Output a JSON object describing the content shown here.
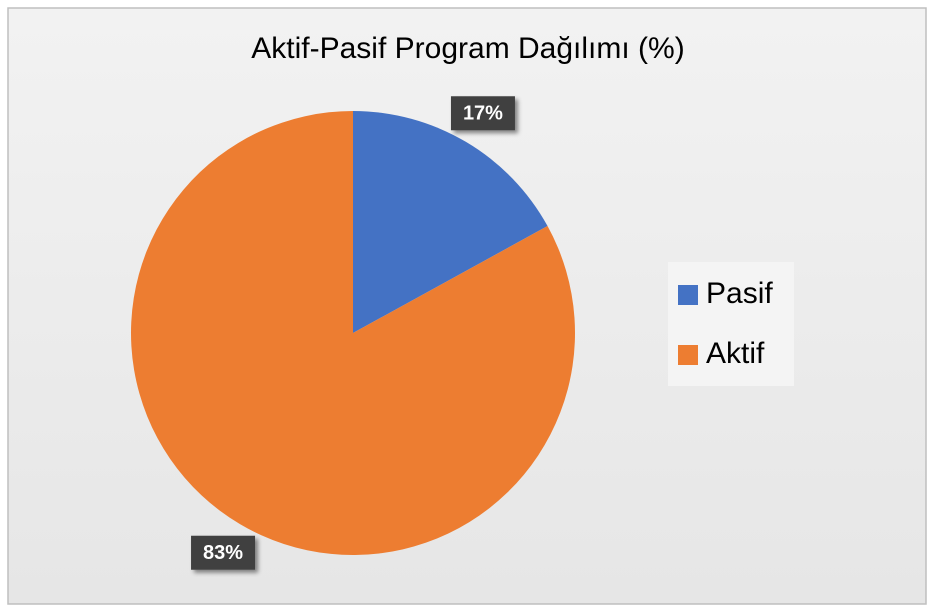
{
  "chart_data": {
    "type": "pie",
    "title": "Aktif-Pasif Program Dağılımı (%)",
    "categories": [
      "Pasif",
      "Aktif"
    ],
    "values": [
      17,
      83
    ],
    "value_labels": [
      "17%",
      "83%"
    ],
    "colors": [
      "#4472c4",
      "#ed7d31"
    ],
    "legend": "right"
  }
}
